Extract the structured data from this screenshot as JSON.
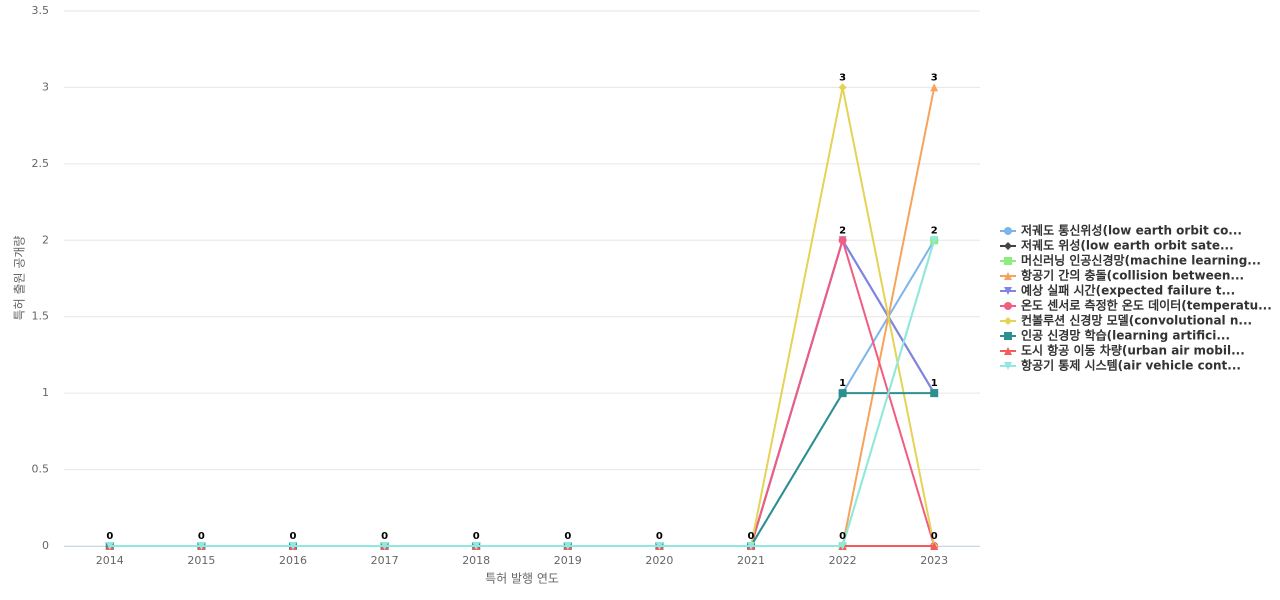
{
  "chart_data": {
    "type": "line",
    "x_label": "특허 발행 연도",
    "y_label": "특허 출원 공개량",
    "categories": [
      "2014",
      "2015",
      "2016",
      "2017",
      "2018",
      "2019",
      "2020",
      "2021",
      "2022",
      "2023"
    ],
    "ylim": [
      0,
      3.5
    ],
    "yticks": [
      0,
      0.5,
      1,
      1.5,
      2,
      2.5,
      3,
      3.5
    ],
    "grid": true,
    "legend": "right",
    "series": [
      {
        "name": "저궤도 통신위성(low earth orbit co...",
        "color": "#7cb5ec",
        "marker": "circle",
        "values": [
          0,
          0,
          0,
          0,
          0,
          0,
          0,
          0,
          1,
          2
        ]
      },
      {
        "name": "저궤도 위성(low earth orbit sate...",
        "color": "#434348",
        "marker": "diamond",
        "values": [
          0,
          0,
          0,
          0,
          0,
          0,
          0,
          0,
          2,
          1
        ]
      },
      {
        "name": "머신러닝 인공신경망(machine learning...",
        "color": "#90ed7d",
        "marker": "square",
        "values": [
          0,
          0,
          0,
          0,
          0,
          0,
          0,
          0,
          0,
          2
        ]
      },
      {
        "name": "항공기 간의 충돌(collision between...",
        "color": "#f7a35c",
        "marker": "triangle",
        "values": [
          0,
          0,
          0,
          0,
          0,
          0,
          0,
          0,
          0,
          3
        ]
      },
      {
        "name": "예상 실패 시간(expected failure t...",
        "color": "#8085e9",
        "marker": "triangle-down",
        "values": [
          0,
          0,
          0,
          0,
          0,
          0,
          0,
          0,
          2,
          1
        ]
      },
      {
        "name": "온도 센서로 측정한 온도 데이터(temperatu...",
        "color": "#f15c80",
        "marker": "circle",
        "values": [
          0,
          0,
          0,
          0,
          0,
          0,
          0,
          0,
          2,
          0
        ]
      },
      {
        "name": "컨볼루션 신경망 모델(convolutional n...",
        "color": "#e4d354",
        "marker": "diamond",
        "values": [
          0,
          0,
          0,
          0,
          0,
          0,
          0,
          0,
          3,
          0
        ]
      },
      {
        "name": "인공 신경망 학습(learning artifici...",
        "color": "#2b908f",
        "marker": "square",
        "values": [
          0,
          0,
          0,
          0,
          0,
          0,
          0,
          0,
          1,
          1
        ]
      },
      {
        "name": "도시 항공 이동 차량(urban air mobil...",
        "color": "#f45b5b",
        "marker": "triangle",
        "values": [
          0,
          0,
          0,
          0,
          0,
          0,
          0,
          0,
          0,
          0
        ]
      },
      {
        "name": "항공기 통제 시스템(air vehicle cont...",
        "color": "#91e8e1",
        "marker": "triangle-down",
        "values": [
          0,
          0,
          0,
          0,
          0,
          0,
          0,
          0,
          0,
          2
        ]
      }
    ]
  }
}
